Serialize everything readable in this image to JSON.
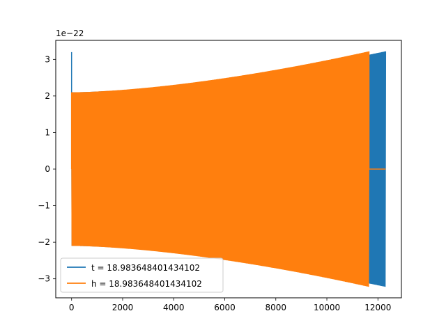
{
  "chart_data": {
    "type": "line",
    "title": "",
    "xlabel": "",
    "ylabel": "",
    "y_offset_text": "1e−22",
    "xlim": [
      -620,
      12920
    ],
    "ylim": [
      -3.52,
      3.52
    ],
    "x_ticks": [
      0,
      2000,
      4000,
      6000,
      8000,
      10000,
      12000
    ],
    "x_tick_labels": [
      "0",
      "2000",
      "4000",
      "6000",
      "8000",
      "10000",
      "12000"
    ],
    "y_ticks": [
      -3,
      -2,
      -1,
      0,
      1,
      2,
      3
    ],
    "y_tick_labels": [
      "−3",
      "−2",
      "−1",
      "0",
      "1",
      "2",
      "3"
    ],
    "grid": false,
    "legend_position": "lower-left",
    "series": [
      {
        "name": "t = 18.983648401434102",
        "color": "#1f77b4",
        "description_points": {
          "spike_x": 0,
          "spike_y": 3.2,
          "oscillation_start_x": 0,
          "oscillation_end_x": 12300,
          "start_amplitude": 2.1,
          "end_amplitude": 3.22
        }
      },
      {
        "name": "h = 18.983648401434102",
        "color": "#ff7f0e",
        "description_points": {
          "oscillation_start_x": 0,
          "oscillation_end_x": 11650,
          "start_amplitude": 2.1,
          "end_amplitude": 3.22,
          "flat_until_x": 12300,
          "flat_y": 0
        }
      }
    ]
  }
}
